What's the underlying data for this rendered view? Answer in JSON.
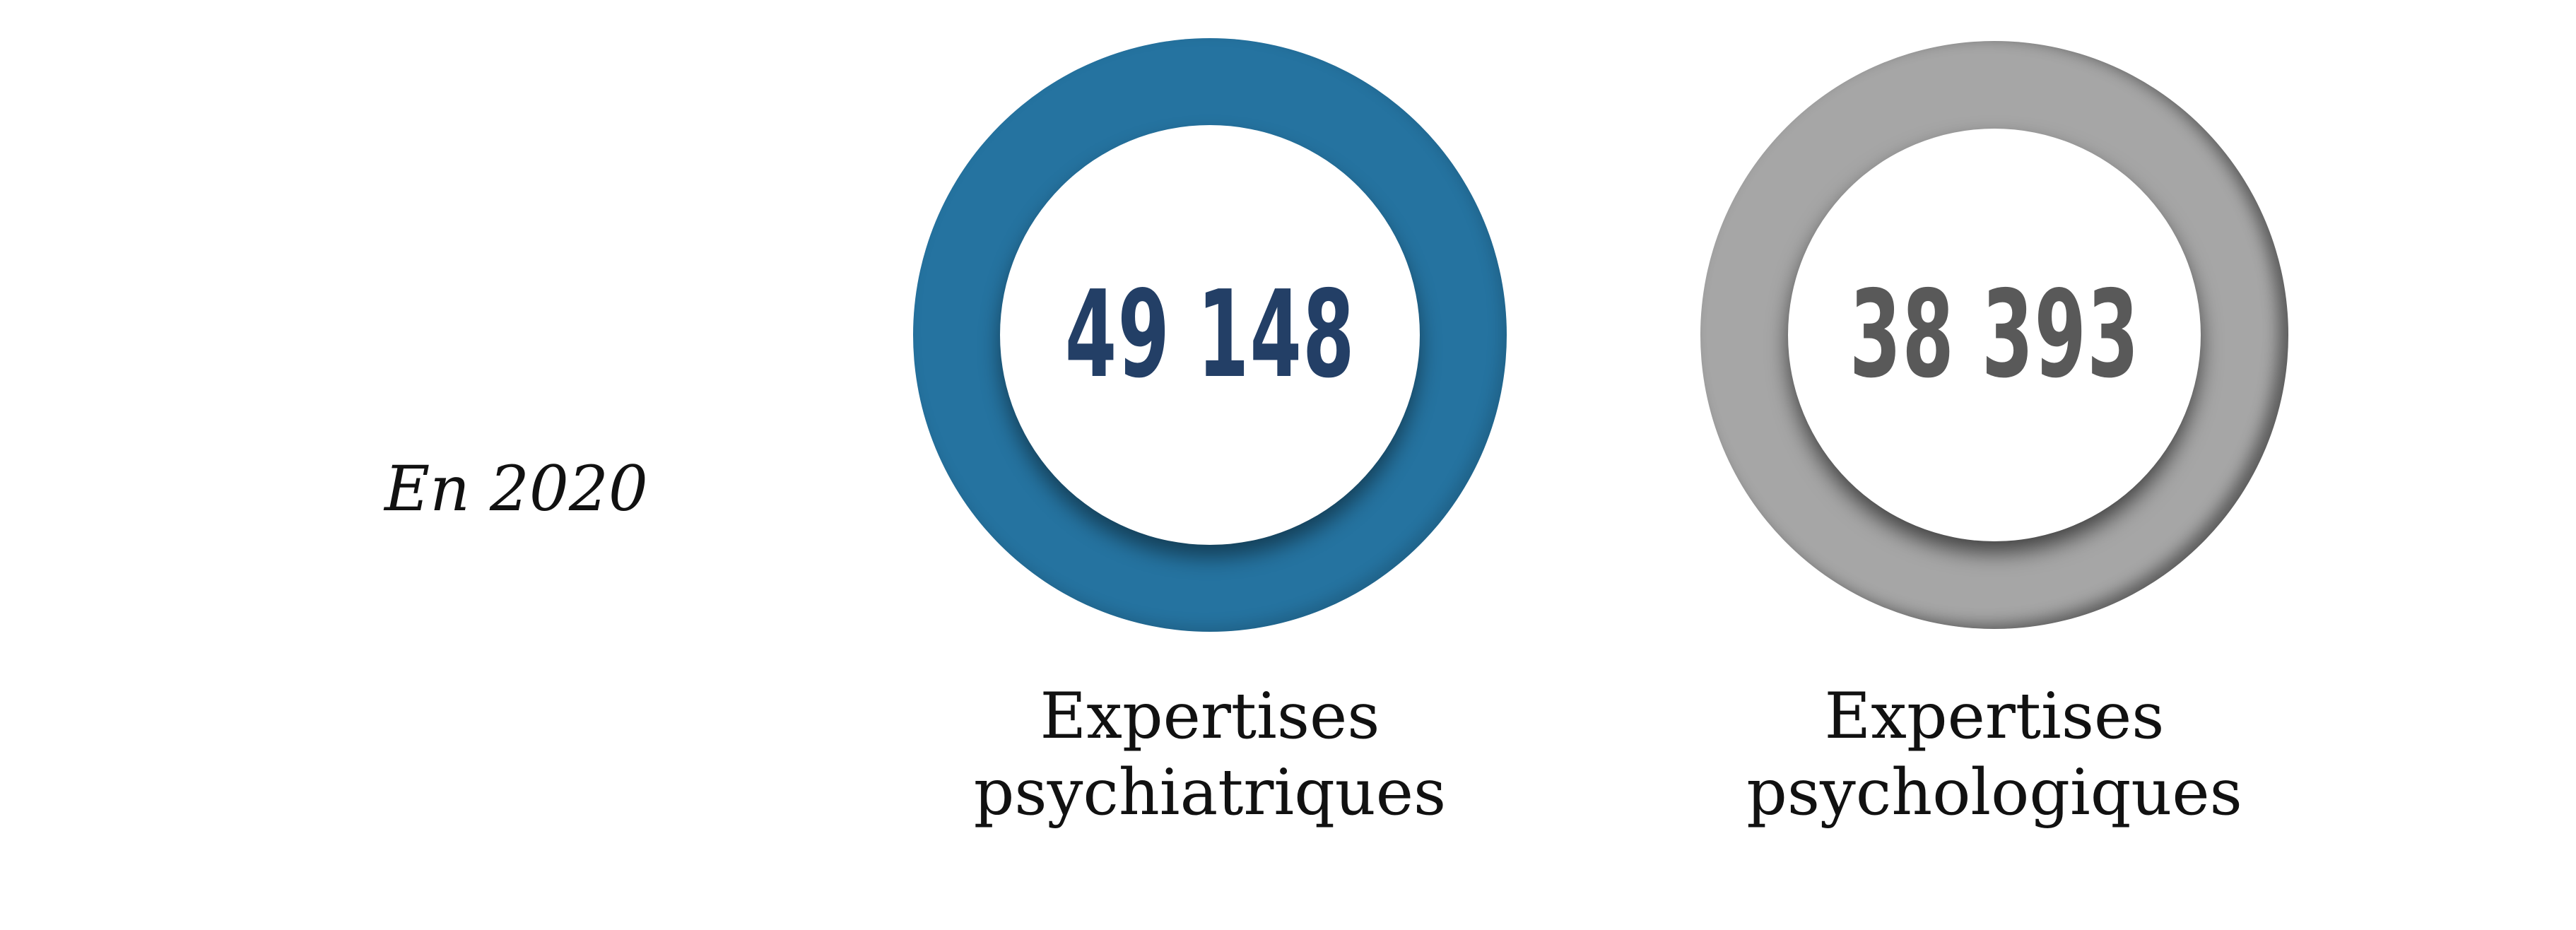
{
  "year_label": "En 2020",
  "stats": [
    {
      "value": "49 148",
      "label_line1": "Expertises",
      "label_line2": "psychiatriques",
      "ring_color": "#2573a0",
      "text_color": "#233f66"
    },
    {
      "value": "38 393",
      "label_line1": "Expertises",
      "label_line2": "psychologiques",
      "ring_color": "#a6a6a6",
      "text_color": "#595959"
    }
  ]
}
